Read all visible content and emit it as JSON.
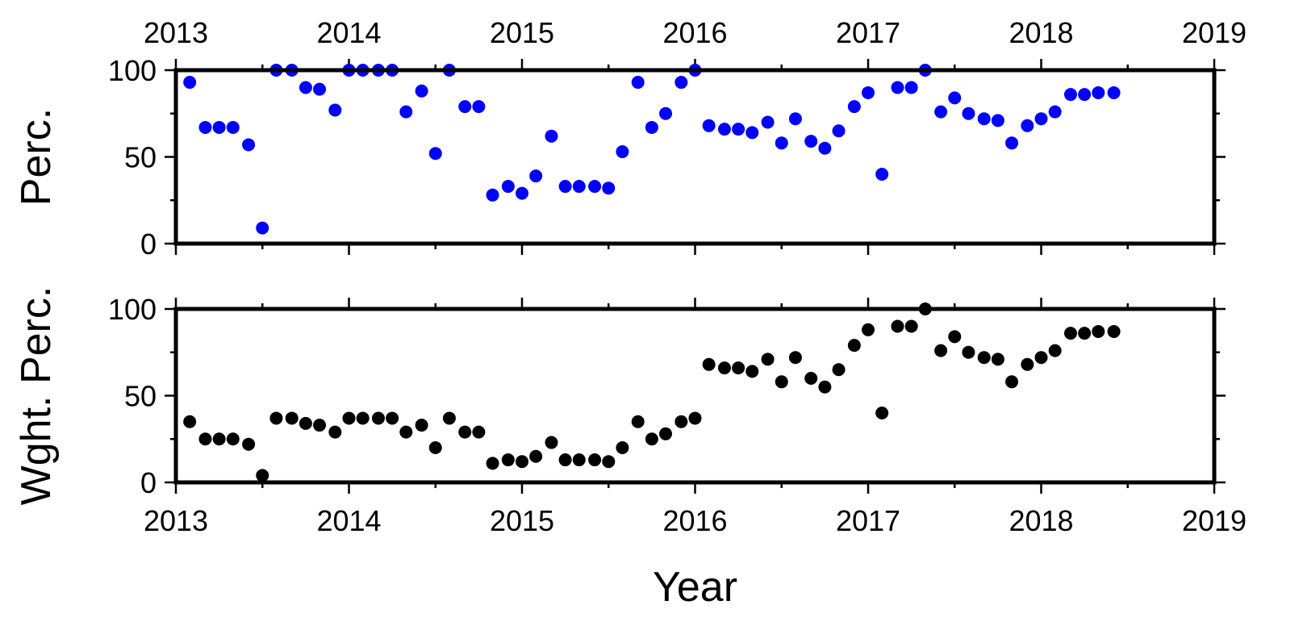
{
  "chart_data": [
    {
      "type": "scatter",
      "ylabel": "Perc.",
      "xlabel": "",
      "x_ticks": [
        "2013",
        "2014",
        "2015",
        "2016",
        "2017",
        "2018",
        "2019"
      ],
      "y_ticks": [
        "0",
        "50",
        "100"
      ],
      "xlim": [
        2013,
        2019
      ],
      "ylim": [
        0,
        100
      ],
      "marker_color": "#0000ff",
      "series": [
        {
          "x": [
            2013.08,
            2013.17,
            2013.25,
            2013.33,
            2013.42,
            2013.5,
            2013.58,
            2013.67,
            2013.75,
            2013.83,
            2013.92,
            2014.0,
            2014.08,
            2014.17,
            2014.25,
            2014.33,
            2014.42,
            2014.5,
            2014.58,
            2014.67,
            2014.75,
            2014.83,
            2014.92,
            2015.0,
            2015.08,
            2015.17,
            2015.25,
            2015.33,
            2015.42,
            2015.5,
            2015.58,
            2015.67,
            2015.75,
            2015.83,
            2015.92,
            2016.0,
            2016.08,
            2016.17,
            2016.25,
            2016.33,
            2016.42,
            2016.5,
            2016.58,
            2016.67,
            2016.75,
            2016.83,
            2016.92,
            2017.0,
            2017.08,
            2017.17,
            2017.25,
            2017.33,
            2017.42,
            2017.5,
            2017.58,
            2017.67,
            2017.75,
            2017.83,
            2017.92,
            2018.0,
            2018.08,
            2018.17,
            2018.25,
            2018.33,
            2018.42
          ],
          "values": [
            93,
            67,
            67,
            67,
            57,
            9,
            100,
            100,
            90,
            89,
            77,
            100,
            100,
            100,
            100,
            76,
            88,
            52,
            100,
            79,
            79,
            28,
            33,
            29,
            39,
            62,
            33,
            33,
            33,
            32,
            53,
            93,
            67,
            75,
            93,
            100,
            68,
            66,
            66,
            64,
            70,
            58,
            72,
            59,
            55,
            65,
            79,
            87,
            40,
            90,
            90,
            100,
            76,
            84,
            75,
            72,
            71,
            58,
            68,
            72,
            76,
            86,
            86,
            87,
            87
          ]
        }
      ]
    },
    {
      "type": "scatter",
      "ylabel": "Wght. Perc.",
      "xlabel": "Year",
      "x_ticks": [
        "2013",
        "2014",
        "2015",
        "2016",
        "2017",
        "2018",
        "2019"
      ],
      "y_ticks": [
        "0",
        "50",
        "100"
      ],
      "xlim": [
        2013,
        2019
      ],
      "ylim": [
        0,
        100
      ],
      "marker_color": "#000000",
      "series": [
        {
          "x": [
            2013.08,
            2013.17,
            2013.25,
            2013.33,
            2013.42,
            2013.5,
            2013.58,
            2013.67,
            2013.75,
            2013.83,
            2013.92,
            2014.0,
            2014.08,
            2014.17,
            2014.25,
            2014.33,
            2014.42,
            2014.5,
            2014.58,
            2014.67,
            2014.75,
            2014.83,
            2014.92,
            2015.0,
            2015.08,
            2015.17,
            2015.25,
            2015.33,
            2015.42,
            2015.5,
            2015.58,
            2015.67,
            2015.75,
            2015.83,
            2015.92,
            2016.0,
            2016.08,
            2016.17,
            2016.25,
            2016.33,
            2016.42,
            2016.5,
            2016.58,
            2016.67,
            2016.75,
            2016.83,
            2016.92,
            2017.0,
            2017.08,
            2017.17,
            2017.25,
            2017.33,
            2017.42,
            2017.5,
            2017.58,
            2017.67,
            2017.75,
            2017.83,
            2017.92,
            2018.0,
            2018.08,
            2018.17,
            2018.25,
            2018.33,
            2018.42
          ],
          "values": [
            35,
            25,
            25,
            25,
            22,
            4,
            37,
            37,
            34,
            33,
            29,
            37,
            37,
            37,
            37,
            29,
            33,
            20,
            37,
            29,
            29,
            11,
            13,
            12,
            15,
            23,
            13,
            13,
            13,
            12,
            20,
            35,
            25,
            28,
            35,
            37,
            68,
            66,
            66,
            64,
            71,
            58,
            72,
            60,
            55,
            65,
            79,
            88,
            40,
            90,
            90,
            100,
            76,
            84,
            75,
            72,
            71,
            58,
            68,
            72,
            76,
            86,
            86,
            87,
            87
          ]
        }
      ]
    }
  ]
}
